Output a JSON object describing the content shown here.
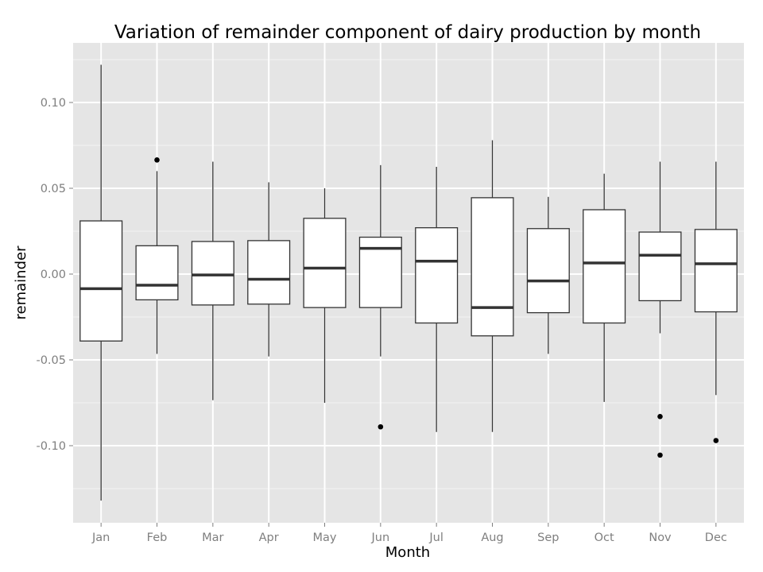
{
  "chart_data": {
    "type": "box",
    "title": "Variation of remainder component of dairy production by month",
    "xlabel": "Month",
    "ylabel": "remainder",
    "ylim": [
      -0.145,
      0.135
    ],
    "y_ticks": [
      -0.1,
      -0.05,
      0.0,
      0.05,
      0.1
    ],
    "y_tick_labels": [
      "-0.10",
      "-0.05",
      "0.00",
      "0.05",
      "0.10"
    ],
    "grid": true,
    "categories": [
      "Jan",
      "Feb",
      "Mar",
      "Apr",
      "May",
      "Jun",
      "Jul",
      "Aug",
      "Sep",
      "Oct",
      "Nov",
      "Dec"
    ],
    "boxes": [
      {
        "min": -0.132,
        "q1": -0.039,
        "median": -0.0085,
        "q3": 0.031,
        "max": 0.122,
        "outliers": []
      },
      {
        "min": -0.0465,
        "q1": -0.015,
        "median": -0.0065,
        "q3": 0.0165,
        "max": 0.06,
        "outliers": [
          0.0665
        ]
      },
      {
        "min": -0.0735,
        "q1": -0.018,
        "median": -0.0005,
        "q3": 0.019,
        "max": 0.0655,
        "outliers": []
      },
      {
        "min": -0.048,
        "q1": -0.0175,
        "median": -0.003,
        "q3": 0.0195,
        "max": 0.0535,
        "outliers": []
      },
      {
        "min": -0.075,
        "q1": -0.0195,
        "median": 0.0035,
        "q3": 0.0325,
        "max": 0.05,
        "outliers": []
      },
      {
        "min": -0.048,
        "q1": -0.0195,
        "median": 0.015,
        "q3": 0.0215,
        "max": 0.0635,
        "outliers": [
          -0.089
        ]
      },
      {
        "min": -0.092,
        "q1": -0.0285,
        "median": 0.0075,
        "q3": 0.027,
        "max": 0.0625,
        "outliers": []
      },
      {
        "min": -0.092,
        "q1": -0.036,
        "median": -0.0195,
        "q3": 0.0445,
        "max": 0.078,
        "outliers": []
      },
      {
        "min": -0.0465,
        "q1": -0.0225,
        "median": -0.004,
        "q3": 0.0265,
        "max": 0.045,
        "outliers": []
      },
      {
        "min": -0.0745,
        "q1": -0.0285,
        "median": 0.0065,
        "q3": 0.0375,
        "max": 0.0585,
        "outliers": []
      },
      {
        "min": -0.0345,
        "q1": -0.0155,
        "median": 0.011,
        "q3": 0.0245,
        "max": 0.0655,
        "outliers": [
          -0.083,
          -0.1055
        ]
      },
      {
        "min": -0.0705,
        "q1": -0.022,
        "median": 0.006,
        "q3": 0.026,
        "max": 0.0655,
        "outliers": [
          -0.097
        ]
      }
    ],
    "colors": {
      "panel_background": "#e5e5e5",
      "grid_major": "#ffffff",
      "grid_minor": "#f2f2f2",
      "box_fill": "#ffffff",
      "box_line": "#333333",
      "tick_label": "#7f7f7f"
    }
  }
}
